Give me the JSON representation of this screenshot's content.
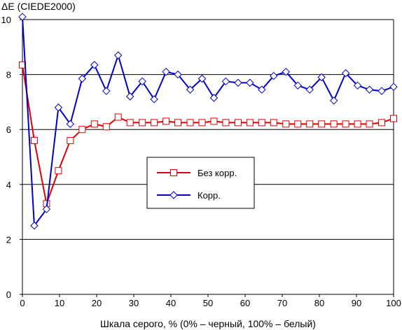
{
  "chart_data": {
    "type": "line",
    "ylabel": "ΔE (CIEDE2000)",
    "xlabel": "Шкала серого, % (0% – черный, 100% – белый)",
    "xlim": [
      0,
      100
    ],
    "ylim": [
      0,
      10
    ],
    "xticks": [
      0,
      10,
      20,
      30,
      40,
      50,
      60,
      70,
      80,
      90,
      100
    ],
    "yticks": [
      0,
      2,
      4,
      6,
      8,
      10
    ],
    "grid": "horizontal",
    "legend_position": "center",
    "series": [
      {
        "name": "Без корр.",
        "color": "#e00000",
        "marker": "square",
        "x": [
          0,
          3.2,
          6.5,
          9.7,
          12.9,
          16.1,
          19.4,
          22.6,
          25.8,
          29.0,
          32.3,
          35.5,
          38.7,
          41.9,
          45.2,
          48.4,
          51.6,
          54.8,
          58.1,
          61.3,
          64.5,
          67.7,
          71.0,
          74.2,
          77.4,
          80.6,
          83.9,
          87.1,
          90.3,
          93.5,
          96.8,
          100
        ],
        "y": [
          8.35,
          5.6,
          3.3,
          4.5,
          5.6,
          6.0,
          6.2,
          6.1,
          6.45,
          6.25,
          6.25,
          6.25,
          6.3,
          6.25,
          6.25,
          6.25,
          6.3,
          6.25,
          6.25,
          6.25,
          6.25,
          6.25,
          6.2,
          6.2,
          6.2,
          6.2,
          6.2,
          6.2,
          6.2,
          6.2,
          6.25,
          6.4
        ]
      },
      {
        "name": "Корр.",
        "color": "#0000c8",
        "marker": "diamond",
        "x": [
          0,
          3.2,
          6.5,
          9.7,
          12.9,
          16.1,
          19.4,
          22.6,
          25.8,
          29.0,
          32.3,
          35.5,
          38.7,
          41.9,
          45.2,
          48.4,
          51.6,
          54.8,
          58.1,
          61.3,
          64.5,
          67.7,
          71.0,
          74.2,
          77.4,
          80.6,
          83.9,
          87.1,
          90.3,
          93.5,
          96.8,
          100
        ],
        "y": [
          10.1,
          2.5,
          3.1,
          6.8,
          6.2,
          7.85,
          8.35,
          7.4,
          8.7,
          7.2,
          7.75,
          7.1,
          8.1,
          8.0,
          7.45,
          7.85,
          7.15,
          7.75,
          7.7,
          7.7,
          7.45,
          7.95,
          8.1,
          7.6,
          7.45,
          7.9,
          7.05,
          8.05,
          7.6,
          7.45,
          7.4,
          7.55
        ]
      }
    ]
  }
}
